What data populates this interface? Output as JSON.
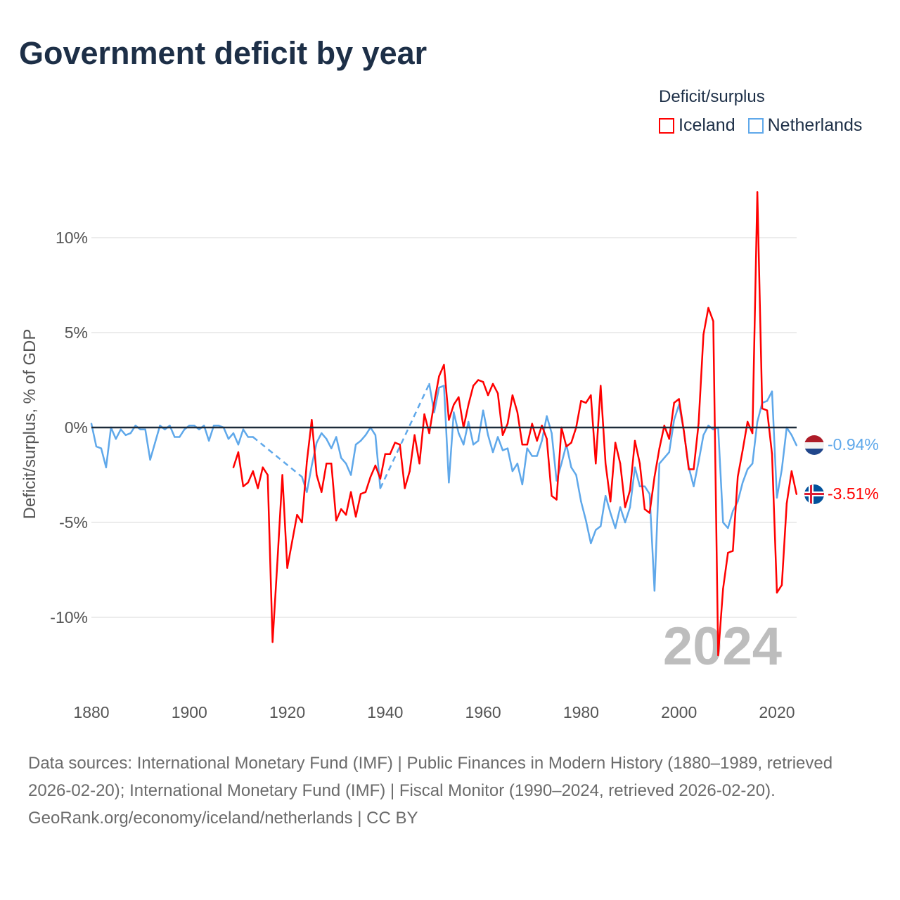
{
  "chart_data": {
    "type": "line",
    "title": "Government deficit by year",
    "ylabel": "Deficit/surplus, % of GDP",
    "xlabel": "",
    "xlim": [
      1880,
      2024
    ],
    "ylim": [
      -13,
      13
    ],
    "x_ticks": [
      1880,
      1900,
      1920,
      1940,
      1960,
      1980,
      2000,
      2020
    ],
    "x_tick_labels": [
      "1880",
      "1900",
      "1920",
      "1940",
      "1960",
      "1980",
      "2000",
      "2020"
    ],
    "y_ticks": [
      10,
      5,
      0,
      -5,
      -10
    ],
    "y_tick_labels": [
      "10%",
      "5%",
      "0%",
      "-5%",
      "-10%"
    ],
    "grid": true,
    "legend_title": "Deficit/surplus",
    "legend_position": "top-right",
    "year_watermark": "2024",
    "series": [
      {
        "name": "Iceland",
        "color": "#ff0000",
        "start_year": 1909,
        "end_label": "-3.51%",
        "values": [
          -2.1,
          -1.3,
          -3.1,
          -2.9,
          -2.3,
          -3.2,
          -2.1,
          -2.5,
          -11.3,
          -7.0,
          -2.5,
          -7.4,
          -6.0,
          -4.6,
          -5.0,
          -1.8,
          0.4,
          -2.5,
          -3.4,
          -1.9,
          -1.9,
          -4.9,
          -4.3,
          -4.6,
          -3.4,
          -4.7,
          -3.5,
          -3.4,
          -2.6,
          -2.0,
          -2.7,
          -1.4,
          -1.4,
          -0.8,
          -0.9,
          -3.2,
          -2.3,
          -0.4,
          -1.9,
          0.7,
          -0.3,
          1.3,
          2.7,
          3.3,
          0.4,
          1.2,
          1.6,
          0.0,
          1.2,
          2.2,
          2.5,
          2.4,
          1.7,
          2.3,
          1.8,
          -0.4,
          0.2,
          1.7,
          0.8,
          -0.9,
          -0.9,
          0.2,
          -0.7,
          0.1,
          -0.6,
          -3.6,
          -3.8,
          0.0,
          -1.0,
          -0.8,
          0.0,
          1.4,
          1.3,
          1.7,
          -1.9,
          2.2,
          -1.9,
          -3.9,
          -0.8,
          -1.9,
          -4.2,
          -3.3,
          -0.7,
          -1.9,
          -4.3,
          -4.5,
          -2.6,
          -1.1,
          0.1,
          -0.6,
          1.3,
          1.5,
          -0.2,
          -2.2,
          -2.2,
          0.2,
          4.9,
          6.3,
          5.6,
          -12.0,
          -8.5,
          -6.6,
          -6.5,
          -2.6,
          -1.2,
          0.3,
          -0.3,
          12.4,
          1.0,
          0.9,
          -1.4,
          -8.7,
          -8.3,
          -4.0,
          -2.3,
          -3.51
        ]
      },
      {
        "name": "Netherlands",
        "color": "#5fa8ea",
        "start_year": 1880,
        "end_label": "-0.94%",
        "values": [
          0.2,
          -1.0,
          -1.1,
          -2.1,
          0.0,
          -0.6,
          -0.1,
          -0.4,
          -0.3,
          0.1,
          -0.1,
          -0.1,
          -1.7,
          -0.8,
          0.1,
          -0.1,
          0.1,
          -0.5,
          -0.5,
          -0.1,
          0.1,
          0.1,
          -0.1,
          0.1,
          -0.7,
          0.1,
          0.1,
          0.0,
          -0.6,
          -0.3,
          -0.9,
          -0.1,
          -0.5,
          -0.5,
          null,
          null,
          null,
          null,
          null,
          null,
          null,
          null,
          null,
          -2.6,
          -3.4,
          -2.0,
          -0.8,
          -0.3,
          -0.6,
          -1.1,
          -0.5,
          -1.6,
          -1.9,
          -2.5,
          -0.9,
          -0.7,
          -0.4,
          0.0,
          -0.4,
          -3.2,
          null,
          null,
          null,
          null,
          null,
          null,
          null,
          null,
          null,
          2.3,
          0.8,
          2.1,
          2.2,
          -2.9,
          0.8,
          -0.3,
          -0.9,
          0.3,
          -0.9,
          -0.7,
          0.9,
          -0.4,
          -1.3,
          -0.5,
          -1.2,
          -1.1,
          -2.3,
          -1.9,
          -3.0,
          -1.1,
          -1.5,
          -1.5,
          -0.7,
          0.6,
          -0.3,
          -2.8,
          -1.9,
          -0.9,
          -2.1,
          -2.5,
          -3.9,
          -4.9,
          -6.1,
          -5.4,
          -5.2,
          -3.6,
          -4.5,
          -5.3,
          -4.2,
          -5.0,
          -4.2,
          -2.1,
          -3.1,
          -3.1,
          -3.5,
          -8.6,
          -1.9,
          -1.6,
          -1.3,
          0.4,
          1.2,
          -0.2,
          -2.1,
          -3.1,
          -1.8,
          -0.4,
          0.1,
          -0.1,
          0.0,
          -5.0,
          -5.3,
          -4.4,
          -3.9,
          -2.9,
          -2.2,
          -1.9,
          0.3,
          1.3,
          1.4,
          1.9,
          -3.7,
          -2.2,
          0.0,
          -0.4,
          -0.94
        ]
      }
    ]
  },
  "footer": {
    "sources": "Data sources: International Monetary Fund (IMF) | Public Finances in Modern History (1880–1989, retrieved 2026-02-20); International Monetary Fund (IMF) | Fiscal Monitor (1990–2024, retrieved 2026-02-20).",
    "attribution": "GeoRank.org/economy/iceland/netherlands | CC BY"
  }
}
